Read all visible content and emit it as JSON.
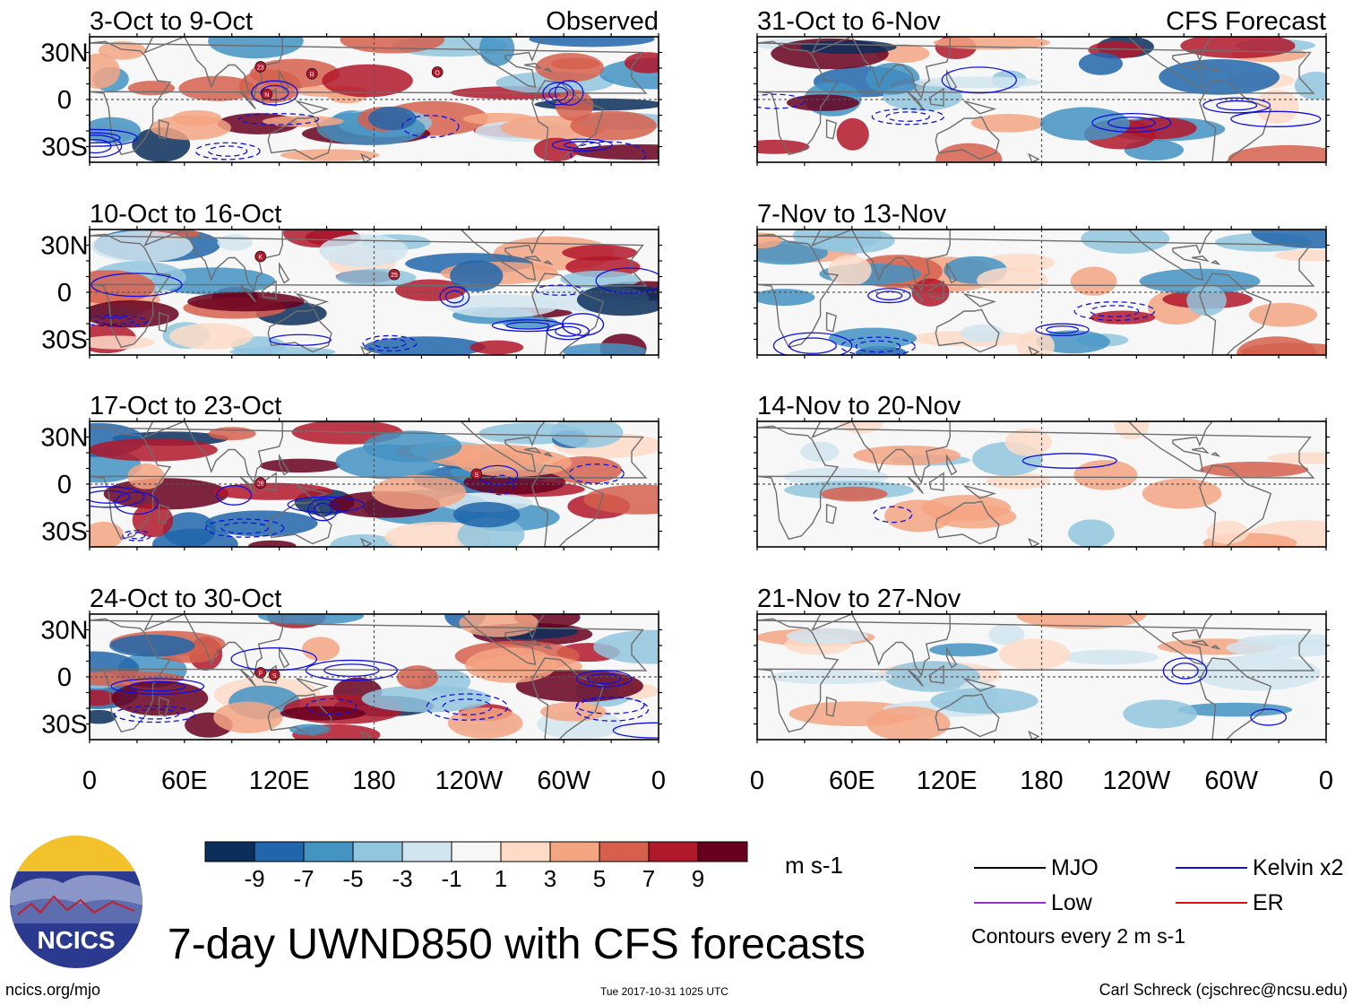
{
  "title": "7-day UWND850 with CFS forecasts",
  "units": "m s-1",
  "footer": {
    "url": "ncics.org/mjo",
    "timestamp": "Tue 2017-10-31 1025 UTC",
    "author": "Carl Schreck (cjschrec@ncsu.edu)"
  },
  "logo": {
    "text": "NCICS"
  },
  "legend": {
    "items": [
      {
        "label": "MJO",
        "color": "#000000"
      },
      {
        "label": "Kelvin x2",
        "color": "#1010e0"
      },
      {
        "label": "Low",
        "color": "#9a30d0"
      },
      {
        "label": "ER",
        "color": "#e01010"
      }
    ],
    "note": "Contours every 2 m s-1"
  },
  "colorbar": {
    "colors": [
      "#0b2e5b",
      "#2166ac",
      "#4393c3",
      "#92c5de",
      "#d1e5f0",
      "#f7f7f7",
      "#fddbc7",
      "#f4a582",
      "#d6604d",
      "#b2182b",
      "#67001f"
    ],
    "tick_labels": [
      "-9",
      "-7",
      "-5",
      "-3",
      "-1",
      "1",
      "3",
      "5",
      "7",
      "9"
    ]
  },
  "chart_data": {
    "type": "heatmap",
    "variable": "850-hPa zonal wind anomaly (7-day mean)",
    "x_ticks": [
      "0",
      "60E",
      "120E",
      "180",
      "120W",
      "60W",
      "0"
    ],
    "y_ticks": [
      "30N",
      "0",
      "30S"
    ],
    "columns": [
      {
        "header": "Observed",
        "panels": [
          {
            "period": "3-Oct to 9-Oct",
            "storm_labels": [
              "23",
              "R",
              "N",
              "O"
            ]
          },
          {
            "period": "10-Oct to 16-Oct",
            "storm_labels": [
              "K",
              "25"
            ]
          },
          {
            "period": "17-Oct to 23-Oct",
            "storm_labels": [
              "26",
              "S"
            ]
          },
          {
            "period": "24-Oct to 30-Oct",
            "storm_labels": [
              "P",
              "S"
            ]
          }
        ]
      },
      {
        "header": "CFS Forecast",
        "panels": [
          {
            "period": "31-Oct to 6-Nov",
            "storm_labels": []
          },
          {
            "period": "7-Nov to 13-Nov",
            "storm_labels": []
          },
          {
            "period": "14-Nov to 20-Nov",
            "storm_labels": []
          },
          {
            "period": "21-Nov to 27-Nov",
            "storm_labels": []
          }
        ]
      }
    ]
  }
}
